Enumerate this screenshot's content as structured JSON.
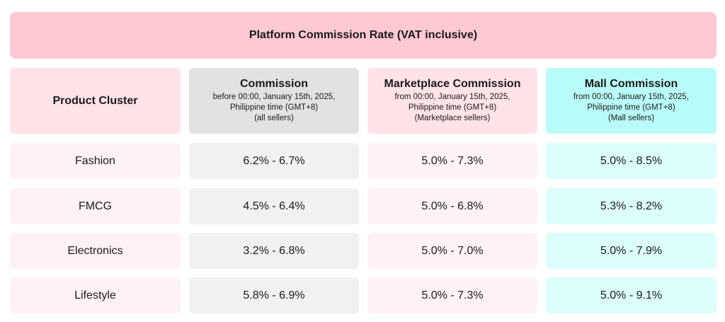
{
  "title": "Platform Commission Rate (VAT inclusive)",
  "columns": [
    {
      "title": "Product Cluster",
      "lines": []
    },
    {
      "title": "Commission",
      "lines": [
        "before 00:00, January 15th, 2025,",
        "Philippine time (GMT+8)",
        "(all sellers)"
      ]
    },
    {
      "title": "Marketplace Commission",
      "lines": [
        "from 00:00, January 15th, 2025,",
        "Philippine time (GMT+8)",
        "(Marketplace sellers)"
      ]
    },
    {
      "title": "Mall Commission",
      "lines": [
        "from 00:00, January 15th, 2025,",
        "Philippine time (GMT+8)",
        "(Mall sellers)"
      ]
    }
  ],
  "rows": [
    {
      "cluster": "Fashion",
      "commission": "6.2% - 6.7%",
      "marketplace": "5.0% - 7.3%",
      "mall": "5.0% - 8.5%"
    },
    {
      "cluster": "FMCG",
      "commission": "4.5% - 6.4%",
      "marketplace": "5.0% - 6.8%",
      "mall": "5.3% - 8.2%"
    },
    {
      "cluster": "Electronics",
      "commission": "3.2% - 6.8%",
      "marketplace": "5.0% - 7.0%",
      "mall": "5.0% - 7.9%"
    },
    {
      "cluster": "Lifestyle",
      "commission": "5.8% - 6.9%",
      "marketplace": "5.0% - 7.3%",
      "mall": "5.0% - 9.1%"
    }
  ],
  "colors": {
    "title_bg": "#ffc9d3",
    "pink_header": "#ffe3e8",
    "gray_header": "#e2e2e2",
    "teal_header": "#b9fbf8",
    "pink_cell": "#fff2f4",
    "gray_cell": "#f1f1f1",
    "teal_cell": "#dcfdfb"
  }
}
